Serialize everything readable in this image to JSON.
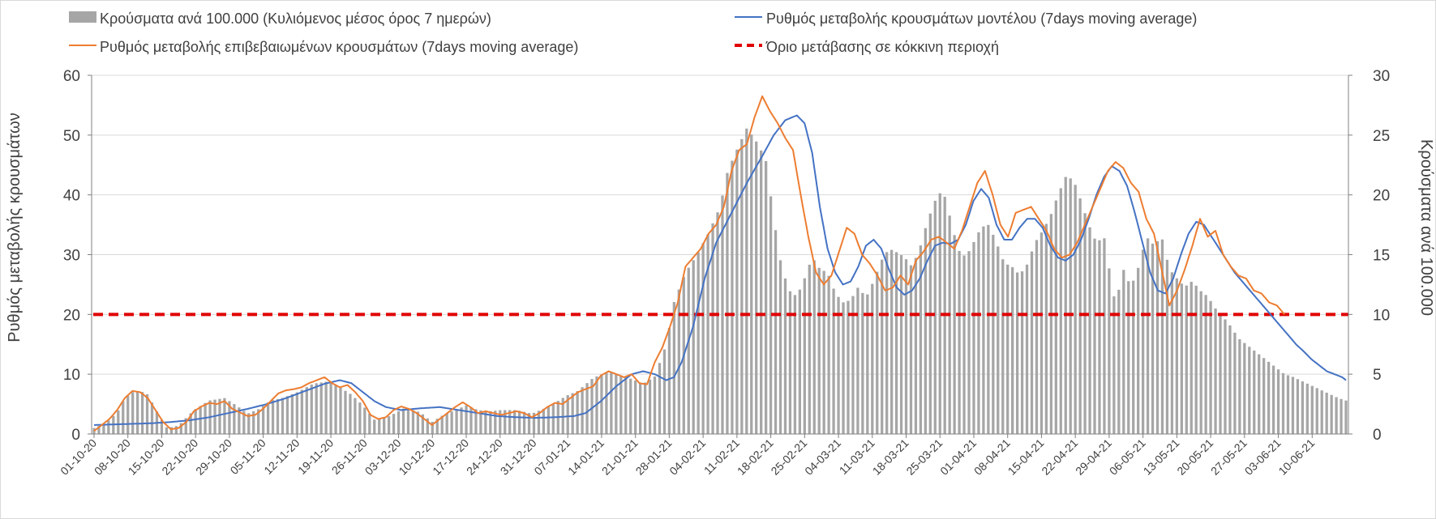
{
  "chart_data": {
    "type": "bar+line",
    "title": "",
    "legend_position": "top",
    "legend": {
      "bars": "Κρούσματα ανά 100.000 (Κυλιόμενος μέσος όρος 7 ημερών)",
      "model": "Ρυθμός μεταβολής κρουσμάτων μοντέλου (7days moving average)",
      "confirmed": "Ρυθμός μεταβολής επιβεβαιωμένων κρουσμάτων (7days moving average)",
      "threshold": "Όριο μετάβασης σε κόκκινη περιοχή"
    },
    "ylabel_left": "Ρυθμός μεταβολής κρουσμάτων",
    "ylabel_right": "Κρούσματα ανά 100.000",
    "y_left": {
      "range": [
        0,
        60
      ],
      "ticks": [
        0,
        10,
        20,
        30,
        40,
        50,
        60
      ]
    },
    "y_right": {
      "range": [
        0,
        30
      ],
      "ticks": [
        0,
        5,
        10,
        15,
        20,
        25,
        30
      ]
    },
    "threshold_value": 20,
    "num_days": 260,
    "x_tick_labels": [
      "01-10-20",
      "08-10-20",
      "15-10-20",
      "22-10-20",
      "29-10-20",
      "05-11-20",
      "12-11-20",
      "19-11-20",
      "26-11-20",
      "03-12-20",
      "10-12-20",
      "17-12-20",
      "24-12-20",
      "31-12-20",
      "07-01-21",
      "14-01-21",
      "21-01-21",
      "28-01-21",
      "04-02-21",
      "11-02-21",
      "18-02-21",
      "25-02-21",
      "04-03-21",
      "11-03-21",
      "18-03-21",
      "25-03-21",
      "01-04-21",
      "08-04-21",
      "15-04-21",
      "22-04-21",
      "29-04-21",
      "06-05-21",
      "13-05-21",
      "20-05-21",
      "27-05-21",
      "03-06-21",
      "10-06-21"
    ],
    "bar_values_anchors": [
      [
        0,
        0.5
      ],
      [
        3,
        0.9
      ],
      [
        6,
        1.8
      ],
      [
        8,
        3.0
      ],
      [
        10,
        3.5
      ],
      [
        12,
        3.6
      ],
      [
        14,
        3.3
      ],
      [
        17,
        1.5
      ],
      [
        19,
        0.5
      ],
      [
        22,
        0.7
      ],
      [
        26,
        2.0
      ],
      [
        30,
        2.8
      ],
      [
        34,
        3.0
      ],
      [
        37,
        2.4
      ],
      [
        40,
        1.7
      ],
      [
        43,
        2.1
      ],
      [
        46,
        2.8
      ],
      [
        49,
        3.0
      ],
      [
        53,
        3.5
      ],
      [
        57,
        4.2
      ],
      [
        61,
        4.4
      ],
      [
        64,
        3.9
      ],
      [
        67,
        3.3
      ],
      [
        70,
        2.4
      ],
      [
        73,
        1.2
      ],
      [
        77,
        1.5
      ],
      [
        81,
        2.2
      ],
      [
        85,
        1.8
      ],
      [
        88,
        1.0
      ],
      [
        91,
        1.6
      ],
      [
        94,
        2.0
      ],
      [
        97,
        2.4
      ],
      [
        100,
        2.0
      ],
      [
        103,
        1.9
      ],
      [
        106,
        2.0
      ],
      [
        110,
        2.0
      ],
      [
        114,
        1.7
      ],
      [
        117,
        2.1
      ],
      [
        120,
        2.6
      ],
      [
        123,
        3.2
      ],
      [
        126,
        3.6
      ],
      [
        130,
        4.7
      ],
      [
        134,
        5.2
      ],
      [
        137,
        4.9
      ],
      [
        140,
        4.6
      ],
      [
        143,
        4.2
      ],
      [
        146,
        4.8
      ],
      [
        149,
        7.5
      ],
      [
        151,
        11.0
      ],
      [
        154,
        13.5
      ],
      [
        157,
        15.0
      ],
      [
        160,
        16.8
      ],
      [
        163,
        19.0
      ],
      [
        165,
        22.0
      ],
      [
        167,
        23.5
      ],
      [
        170,
        25.6
      ],
      [
        173,
        24.2
      ],
      [
        175,
        22.8
      ],
      [
        177,
        18.0
      ],
      [
        179,
        14.0
      ],
      [
        181,
        12.0
      ],
      [
        183,
        11.5
      ],
      [
        185,
        13.0
      ],
      [
        187,
        14.8
      ],
      [
        189,
        13.8
      ],
      [
        191,
        13.5
      ],
      [
        193,
        11.8
      ],
      [
        195,
        11.0
      ],
      [
        197,
        11.2
      ],
      [
        199,
        12.3
      ],
      [
        201,
        11.4
      ],
      [
        203,
        12.8
      ],
      [
        205,
        14.5
      ],
      [
        207,
        15.5
      ],
      [
        209,
        15.2
      ],
      [
        211,
        14.8
      ],
      [
        213,
        14.0
      ],
      [
        215,
        15.5
      ],
      [
        217,
        17.8
      ],
      [
        219,
        19.5
      ],
      [
        221,
        20.5
      ],
      [
        223,
        18.0
      ],
      [
        225,
        15.4
      ],
      [
        227,
        14.8
      ],
      [
        229,
        16.0
      ],
      [
        231,
        17.3
      ],
      [
        233,
        17.5
      ],
      [
        235,
        16.0
      ],
      [
        237,
        14.3
      ],
      [
        239,
        14.0
      ],
      [
        241,
        13.3
      ],
      [
        243,
        14.2
      ],
      [
        245,
        16.0
      ],
      [
        247,
        17.0
      ],
      [
        249,
        18.2
      ],
      [
        251,
        20.0
      ],
      [
        253,
        21.5
      ],
      [
        255,
        21.3
      ],
      [
        257,
        19.5
      ],
      [
        259,
        17.5
      ],
      [
        261,
        16.0
      ],
      [
        263,
        16.5
      ],
      [
        265,
        12.5
      ],
      [
        266,
        10.8
      ],
      [
        268,
        13.8
      ],
      [
        270,
        12.3
      ],
      [
        272,
        14.0
      ],
      [
        274,
        16.5
      ],
      [
        276,
        15.8
      ],
      [
        278,
        16.5
      ],
      [
        280,
        13.8
      ],
      [
        282,
        13.0
      ],
      [
        284,
        12.3
      ],
      [
        286,
        12.8
      ],
      [
        288,
        12.0
      ],
      [
        290,
        11.5
      ],
      [
        292,
        10.5
      ],
      [
        294,
        9.8
      ],
      [
        296,
        9.0
      ],
      [
        298,
        8.0
      ],
      [
        300,
        7.5
      ],
      [
        302,
        7.0
      ],
      [
        304,
        6.5
      ],
      [
        306,
        6.0
      ],
      [
        308,
        5.5
      ],
      [
        310,
        5.0
      ],
      [
        312,
        4.8
      ],
      [
        314,
        4.5
      ],
      [
        316,
        4.2
      ],
      [
        318,
        3.9
      ],
      [
        320,
        3.6
      ],
      [
        322,
        3.3
      ],
      [
        324,
        3.0
      ],
      [
        326,
        2.8
      ]
    ],
    "model_line_anchors": [
      [
        0,
        1.5
      ],
      [
        5,
        1.6
      ],
      [
        10,
        1.7
      ],
      [
        15,
        1.8
      ],
      [
        20,
        2.0
      ],
      [
        25,
        2.3
      ],
      [
        30,
        2.8
      ],
      [
        35,
        3.5
      ],
      [
        40,
        4.2
      ],
      [
        45,
        5.0
      ],
      [
        50,
        6.0
      ],
      [
        55,
        7.2
      ],
      [
        60,
        8.4
      ],
      [
        64,
        9.0
      ],
      [
        67,
        8.5
      ],
      [
        70,
        7.0
      ],
      [
        73,
        5.5
      ],
      [
        76,
        4.5
      ],
      [
        80,
        4.0
      ],
      [
        85,
        4.3
      ],
      [
        90,
        4.5
      ],
      [
        95,
        4.0
      ],
      [
        100,
        3.5
      ],
      [
        105,
        3.0
      ],
      [
        110,
        2.8
      ],
      [
        115,
        2.7
      ],
      [
        120,
        2.8
      ],
      [
        125,
        3.0
      ],
      [
        128,
        3.5
      ],
      [
        132,
        5.5
      ],
      [
        136,
        8.0
      ],
      [
        140,
        10.0
      ],
      [
        143,
        10.5
      ],
      [
        146,
        10.0
      ],
      [
        149,
        9.0
      ],
      [
        151,
        9.5
      ],
      [
        153,
        12.0
      ],
      [
        156,
        18.0
      ],
      [
        159,
        26.0
      ],
      [
        162,
        32.0
      ],
      [
        166,
        37.0
      ],
      [
        170,
        42.0
      ],
      [
        174,
        46.5
      ],
      [
        177,
        50.0
      ],
      [
        180,
        52.5
      ],
      [
        183,
        53.3
      ],
      [
        185,
        52.0
      ],
      [
        187,
        47.0
      ],
      [
        189,
        38.0
      ],
      [
        191,
        31.0
      ],
      [
        193,
        27.0
      ],
      [
        195,
        25.0
      ],
      [
        197,
        25.5
      ],
      [
        199,
        28.0
      ],
      [
        201,
        31.5
      ],
      [
        203,
        32.5
      ],
      [
        205,
        31.0
      ],
      [
        207,
        27.5
      ],
      [
        209,
        24.5
      ],
      [
        211,
        23.3
      ],
      [
        213,
        24.0
      ],
      [
        215,
        26.0
      ],
      [
        217,
        29.0
      ],
      [
        219,
        31.5
      ],
      [
        221,
        32.0
      ],
      [
        223,
        31.8
      ],
      [
        225,
        32.5
      ],
      [
        227,
        35.0
      ],
      [
        229,
        39.0
      ],
      [
        231,
        41.0
      ],
      [
        233,
        39.5
      ],
      [
        235,
        35.0
      ],
      [
        237,
        32.5
      ],
      [
        239,
        32.5
      ],
      [
        241,
        34.5
      ],
      [
        243,
        36.0
      ],
      [
        245,
        36.0
      ],
      [
        247,
        34.5
      ],
      [
        249,
        31.5
      ],
      [
        251,
        29.5
      ],
      [
        253,
        29.0
      ],
      [
        255,
        30.0
      ],
      [
        257,
        32.5
      ],
      [
        259,
        36.0
      ],
      [
        261,
        40.0
      ],
      [
        263,
        43.0
      ],
      [
        265,
        44.8
      ],
      [
        267,
        44.0
      ],
      [
        269,
        41.5
      ],
      [
        271,
        37.0
      ],
      [
        273,
        32.0
      ],
      [
        275,
        27.0
      ],
      [
        277,
        24.0
      ],
      [
        279,
        23.5
      ],
      [
        281,
        26.0
      ],
      [
        283,
        30.0
      ],
      [
        285,
        33.5
      ],
      [
        287,
        35.5
      ],
      [
        289,
        35.0
      ],
      [
        291,
        33.0
      ],
      [
        293,
        31.0
      ],
      [
        295,
        29.0
      ],
      [
        297,
        27.0
      ],
      [
        299,
        25.5
      ],
      [
        301,
        24.0
      ],
      [
        303,
        22.5
      ],
      [
        305,
        21.0
      ],
      [
        307,
        19.5
      ],
      [
        309,
        18.0
      ],
      [
        311,
        16.5
      ],
      [
        313,
        15.0
      ],
      [
        315,
        13.8
      ],
      [
        317,
        12.5
      ],
      [
        319,
        11.5
      ],
      [
        321,
        10.5
      ],
      [
        323,
        10.0
      ],
      [
        325,
        9.5
      ],
      [
        326,
        9.0
      ]
    ],
    "confirmed_line_anchors": [
      [
        0,
        0.5
      ],
      [
        2,
        1.5
      ],
      [
        4,
        2.5
      ],
      [
        6,
        4.0
      ],
      [
        8,
        6.0
      ],
      [
        10,
        7.2
      ],
      [
        12,
        7.0
      ],
      [
        14,
        6.0
      ],
      [
        16,
        4.0
      ],
      [
        18,
        2.0
      ],
      [
        20,
        0.8
      ],
      [
        22,
        1.0
      ],
      [
        24,
        2.0
      ],
      [
        26,
        3.8
      ],
      [
        28,
        4.6
      ],
      [
        30,
        5.2
      ],
      [
        32,
        5.0
      ],
      [
        34,
        5.5
      ],
      [
        36,
        4.2
      ],
      [
        38,
        3.6
      ],
      [
        40,
        3.0
      ],
      [
        42,
        3.2
      ],
      [
        44,
        4.2
      ],
      [
        46,
        5.5
      ],
      [
        48,
        6.8
      ],
      [
        50,
        7.3
      ],
      [
        52,
        7.5
      ],
      [
        54,
        7.8
      ],
      [
        56,
        8.5
      ],
      [
        58,
        9.0
      ],
      [
        60,
        9.5
      ],
      [
        62,
        8.5
      ],
      [
        64,
        7.8
      ],
      [
        66,
        8.2
      ],
      [
        68,
        7.0
      ],
      [
        70,
        5.5
      ],
      [
        72,
        3.2
      ],
      [
        74,
        2.5
      ],
      [
        76,
        2.8
      ],
      [
        78,
        4.0
      ],
      [
        80,
        4.6
      ],
      [
        82,
        4.2
      ],
      [
        84,
        3.5
      ],
      [
        86,
        2.5
      ],
      [
        88,
        1.5
      ],
      [
        90,
        2.5
      ],
      [
        92,
        3.5
      ],
      [
        94,
        4.5
      ],
      [
        96,
        5.3
      ],
      [
        98,
        4.5
      ],
      [
        100,
        3.5
      ],
      [
        102,
        3.8
      ],
      [
        104,
        3.5
      ],
      [
        106,
        3.2
      ],
      [
        108,
        3.5
      ],
      [
        110,
        3.8
      ],
      [
        112,
        3.5
      ],
      [
        114,
        2.8
      ],
      [
        116,
        3.5
      ],
      [
        118,
        4.5
      ],
      [
        120,
        5.2
      ],
      [
        122,
        5.0
      ],
      [
        124,
        6.0
      ],
      [
        126,
        7.0
      ],
      [
        128,
        7.5
      ],
      [
        130,
        8.0
      ],
      [
        132,
        9.8
      ],
      [
        134,
        10.5
      ],
      [
        136,
        10.0
      ],
      [
        138,
        9.5
      ],
      [
        140,
        10.0
      ],
      [
        142,
        8.5
      ],
      [
        144,
        8.3
      ],
      [
        146,
        12.0
      ],
      [
        148,
        14.5
      ],
      [
        150,
        18.0
      ],
      [
        152,
        22.0
      ],
      [
        154,
        28.0
      ],
      [
        156,
        29.5
      ],
      [
        158,
        31.0
      ],
      [
        160,
        33.5
      ],
      [
        162,
        35.0
      ],
      [
        164,
        38.0
      ],
      [
        166,
        44.0
      ],
      [
        168,
        47.5
      ],
      [
        170,
        48.5
      ],
      [
        172,
        53.0
      ],
      [
        174,
        56.5
      ],
      [
        176,
        54.0
      ],
      [
        178,
        52.0
      ],
      [
        180,
        49.5
      ],
      [
        182,
        47.5
      ],
      [
        184,
        40.0
      ],
      [
        186,
        33.0
      ],
      [
        188,
        27.0
      ],
      [
        190,
        25.0
      ],
      [
        192,
        26.5
      ],
      [
        194,
        30.5
      ],
      [
        196,
        34.5
      ],
      [
        198,
        33.5
      ],
      [
        200,
        30.0
      ],
      [
        202,
        28.5
      ],
      [
        204,
        26.5
      ],
      [
        206,
        24.0
      ],
      [
        208,
        24.5
      ],
      [
        210,
        26.5
      ],
      [
        212,
        25.0
      ],
      [
        214,
        29.0
      ],
      [
        216,
        30.5
      ],
      [
        218,
        32.5
      ],
      [
        220,
        33.0
      ],
      [
        222,
        32.0
      ],
      [
        224,
        31.0
      ],
      [
        226,
        34.0
      ],
      [
        228,
        38.0
      ],
      [
        230,
        42.0
      ],
      [
        232,
        44.0
      ],
      [
        234,
        40.0
      ],
      [
        236,
        35.0
      ],
      [
        238,
        33.0
      ],
      [
        240,
        37.0
      ],
      [
        242,
        37.5
      ],
      [
        244,
        38.0
      ],
      [
        246,
        36.0
      ],
      [
        248,
        34.0
      ],
      [
        250,
        31.0
      ],
      [
        252,
        29.5
      ],
      [
        254,
        30.0
      ],
      [
        256,
        32.0
      ],
      [
        258,
        35.0
      ],
      [
        260,
        38.0
      ],
      [
        262,
        41.0
      ],
      [
        264,
        44.0
      ],
      [
        266,
        45.5
      ],
      [
        268,
        44.5
      ],
      [
        270,
        42.0
      ],
      [
        272,
        40.5
      ],
      [
        274,
        36.0
      ],
      [
        276,
        33.5
      ],
      [
        278,
        27.5
      ],
      [
        280,
        21.5
      ],
      [
        282,
        24.0
      ],
      [
        284,
        27.5
      ],
      [
        286,
        31.5
      ],
      [
        288,
        36.0
      ],
      [
        290,
        33.0
      ],
      [
        292,
        34.0
      ],
      [
        294,
        30.0
      ],
      [
        296,
        28.0
      ],
      [
        298,
        26.5
      ],
      [
        300,
        26.0
      ],
      [
        302,
        24.0
      ],
      [
        304,
        23.5
      ],
      [
        306,
        22.0
      ],
      [
        308,
        21.5
      ],
      [
        310,
        20.0
      ]
    ]
  }
}
